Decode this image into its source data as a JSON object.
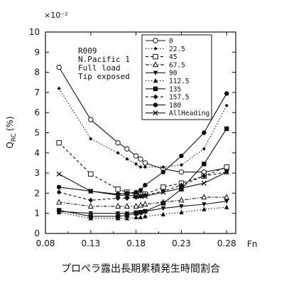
{
  "chart_data": {
    "type": "line",
    "y_multiplier": "×10⁻²",
    "ylabel": "Q",
    "ylabel_sub": "RC",
    "ylabel_unit": "(%)",
    "xlabel": "Fn",
    "caption": "プロペラ露出長期累積発生時間割合",
    "annotation": [
      "R009",
      "N.Pacific 1",
      "Full load",
      "Tip exposed"
    ],
    "xlim": [
      0.08,
      0.29
    ],
    "ylim": [
      0,
      10
    ],
    "xticks": [
      0.08,
      0.13,
      0.18,
      0.23,
      0.28
    ],
    "xtick_labels": [
      "0.08",
      "0.13",
      "0.18",
      "0.23",
      "0.28"
    ],
    "yticks": [
      0,
      1,
      2,
      3,
      4,
      5,
      6,
      7,
      8,
      9,
      10
    ],
    "ytick_labels": [
      "0",
      "1",
      "2",
      "3",
      "4",
      "5",
      "6",
      "7",
      "8",
      "9",
      "10"
    ],
    "grid": false,
    "legend_position": "top-right",
    "series": [
      {
        "name": "0",
        "marker": "circle-open",
        "dash": "solid",
        "x": [
          0.095,
          0.13,
          0.16,
          0.17,
          0.18,
          0.185,
          0.19,
          0.21,
          0.23,
          0.255,
          0.28
        ],
        "y": [
          8.25,
          5.65,
          4.5,
          4.2,
          3.85,
          3.7,
          3.5,
          3.2,
          3.05,
          3.05,
          3.25
        ]
      },
      {
        "name": "22.5",
        "marker": "diamond-small",
        "dash": "dotted",
        "x": [
          0.095,
          0.13,
          0.16,
          0.17,
          0.18,
          0.185,
          0.19,
          0.21,
          0.23,
          0.255,
          0.28
        ],
        "y": [
          7.2,
          4.7,
          4.0,
          3.7,
          3.45,
          3.3,
          3.3,
          3.3,
          3.4,
          4.2,
          6.35
        ]
      },
      {
        "name": "45",
        "marker": "square-open",
        "dash": "dashed",
        "x": [
          0.095,
          0.13,
          0.16,
          0.17,
          0.18,
          0.185,
          0.19,
          0.21,
          0.23,
          0.255,
          0.28
        ],
        "y": [
          4.5,
          2.95,
          2.2,
          2.05,
          1.95,
          1.9,
          1.95,
          2.3,
          2.5,
          2.85,
          3.3
        ]
      },
      {
        "name": "67.5",
        "marker": "triangle-open",
        "dash": "dashdot",
        "x": [
          0.095,
          0.13,
          0.16,
          0.17,
          0.18,
          0.185,
          0.19,
          0.21,
          0.23,
          0.255,
          0.28
        ],
        "y": [
          1.55,
          1.35,
          1.35,
          1.35,
          1.35,
          1.4,
          1.45,
          1.55,
          1.65,
          1.8,
          1.8
        ]
      },
      {
        "name": "90",
        "marker": "triangle-down-filled",
        "dash": "solid",
        "x": [
          0.095,
          0.13,
          0.16,
          0.17,
          0.18,
          0.185,
          0.19,
          0.21,
          0.23,
          0.255,
          0.28
        ],
        "y": [
          1.1,
          1.0,
          1.0,
          1.0,
          1.05,
          1.05,
          1.1,
          1.25,
          1.35,
          1.45,
          1.6
        ]
      },
      {
        "name": "112.5",
        "marker": "triangle-filled",
        "dash": "dotted",
        "x": [
          0.095,
          0.13,
          0.16,
          0.17,
          0.18,
          0.185,
          0.19,
          0.21,
          0.23,
          0.255,
          0.28
        ],
        "y": [
          1.05,
          0.75,
          0.75,
          0.75,
          0.8,
          0.8,
          0.85,
          0.95,
          1.05,
          1.2,
          1.3
        ]
      },
      {
        "name": "135",
        "marker": "square-filled",
        "dash": "solid",
        "x": [
          0.095,
          0.13,
          0.16,
          0.17,
          0.18,
          0.185,
          0.19,
          0.21,
          0.23,
          0.255,
          0.28
        ],
        "y": [
          1.15,
          0.85,
          0.85,
          0.9,
          1.0,
          1.05,
          1.1,
          1.5,
          2.2,
          3.45,
          5.2
        ]
      },
      {
        "name": "157.5",
        "marker": "diamond-filled",
        "dash": "dashed",
        "x": [
          0.095,
          0.13,
          0.16,
          0.17,
          0.18,
          0.185,
          0.19,
          0.21,
          0.23,
          0.255,
          0.28
        ],
        "y": [
          2.05,
          1.65,
          1.75,
          1.75,
          1.8,
          1.85,
          1.9,
          2.1,
          2.4,
          2.85,
          3.05
        ]
      },
      {
        "name": "180",
        "marker": "circle-filled",
        "dash": "solid",
        "x": [
          0.095,
          0.13,
          0.16,
          0.17,
          0.18,
          0.185,
          0.19,
          0.21,
          0.23,
          0.255,
          0.28
        ],
        "y": [
          2.3,
          2.1,
          1.95,
          2.0,
          2.05,
          2.15,
          2.4,
          3.05,
          3.85,
          5.0,
          6.95
        ]
      },
      {
        "name": "AllHeading",
        "marker": "x",
        "dash": "solid",
        "x": [
          0.095,
          0.13,
          0.16,
          0.17,
          0.18,
          0.185,
          0.19,
          0.21,
          0.23,
          0.255,
          0.28
        ],
        "y": [
          2.95,
          2.1,
          1.9,
          1.9,
          1.85,
          1.85,
          1.85,
          2.05,
          2.25,
          2.5,
          3.05
        ]
      }
    ]
  }
}
